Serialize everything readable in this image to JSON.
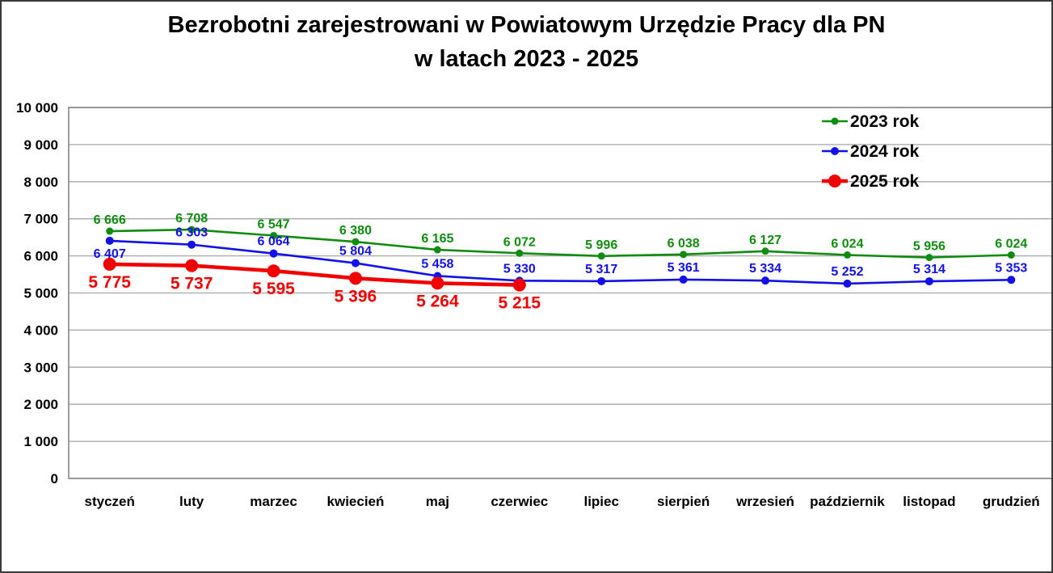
{
  "title": {
    "line1": "Bezrobotni zarejestrowani w Powiatowym Urzędzie Pracy dla PN",
    "line2": "w latach 2023 - 2025"
  },
  "chart_data": {
    "type": "line",
    "categories": [
      "styczeń",
      "luty",
      "marzec",
      "kwiecień",
      "maj",
      "czerwiec",
      "lipiec",
      "sierpień",
      "wrzesień",
      "październik",
      "listopad",
      "grudzień"
    ],
    "series": [
      {
        "name": "2023 rok",
        "color": "#0E8C0E",
        "values": [
          6666,
          6708,
          6547,
          6380,
          6165,
          6072,
          5996,
          6038,
          6127,
          6024,
          5956,
          6024
        ],
        "labels": [
          "6 666",
          "6 708",
          "6 547",
          "6 380",
          "6 165",
          "6 072",
          "5 996",
          "6 038",
          "6 127",
          "6 024",
          "5 956",
          "6 024"
        ],
        "label_position": "above"
      },
      {
        "name": "2024 rok",
        "color": "#1111E8",
        "values": [
          6407,
          6303,
          6064,
          5804,
          5458,
          5330,
          5317,
          5361,
          5334,
          5252,
          5314,
          5353
        ],
        "labels": [
          "6 407",
          "6 303",
          "6 064",
          "5 804",
          "5 458",
          "5 330",
          "5 317",
          "5 361",
          "5 334",
          "5 252",
          "5 314",
          "5 353"
        ],
        "label_position": "above",
        "label_exceptions": {
          "0": "below"
        }
      },
      {
        "name": "2025 rok",
        "color": "#F20000",
        "values": [
          5775,
          5737,
          5595,
          5396,
          5264,
          5215
        ],
        "labels": [
          "5 775",
          "5 737",
          "5 595",
          "5 396",
          "5 264",
          "5 215"
        ],
        "label_position": "below"
      }
    ],
    "y_axis": {
      "min": 0,
      "max": 10000,
      "step": 1000,
      "tick_labels": [
        "10 000",
        "9 000",
        "8 000",
        "7 000",
        "6 000",
        "5 000",
        "4 000",
        "3 000",
        "2 000",
        "1 000",
        "0"
      ]
    },
    "legend_position": "top-right",
    "grid": true,
    "grid_color": "#A6A6A6",
    "border_color": "#7F7F7F",
    "text_color": "#000000"
  }
}
